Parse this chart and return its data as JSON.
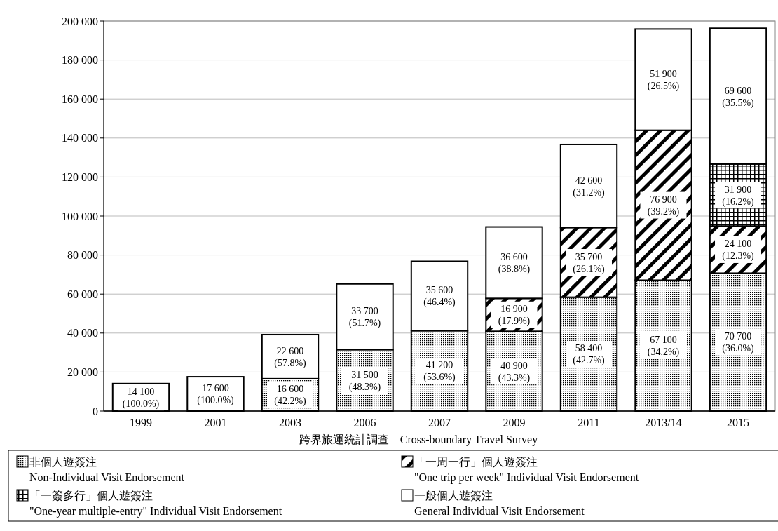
{
  "chart_data": {
    "type": "bar",
    "stacked": true,
    "categories": [
      "1999",
      "2001",
      "2003",
      "2006",
      "2007",
      "2009",
      "2011",
      "2013/14",
      "2015"
    ],
    "xlabel": "跨界旅運統計調查　Cross-boundary Travel Survey",
    "ylim": [
      0,
      200000
    ],
    "yticks": [
      {
        "value": 0,
        "label": "0"
      },
      {
        "value": 20000,
        "label": "20 000"
      },
      {
        "value": 40000,
        "label": "40 000"
      },
      {
        "value": 60000,
        "label": "60 000"
      },
      {
        "value": 80000,
        "label": "80 000"
      },
      {
        "value": 100000,
        "label": "100 000"
      },
      {
        "value": 120000,
        "label": "120 000"
      },
      {
        "value": 140000,
        "label": "140 000"
      },
      {
        "value": 160000,
        "label": "160 000"
      },
      {
        "value": 180000,
        "label": "180 000"
      },
      {
        "value": 200000,
        "label": "200 000"
      }
    ],
    "grid": "y",
    "legend": "bottom",
    "series": [
      {
        "name": "非個人遊簽注\nNon-Individual Visit Endorsement",
        "color": "#000000",
        "values": [
          null,
          null,
          16600,
          31500,
          41200,
          40900,
          58400,
          67100,
          70700
        ],
        "value_labels": [
          null,
          null,
          "16 600\n(42.2%)",
          "31 500\n(48.3%)",
          "41 200\n(53.6%)",
          "40 900\n(43.3%)",
          "58 400\n(42.7%)",
          "67 100\n(34.2%)",
          "70 700\n(36.0%)"
        ]
      },
      {
        "name": "「一周一行」個人遊簽注\n\"One trip per week\" Individual Visit Endorsement",
        "color": "#000000",
        "values": [
          null,
          null,
          null,
          null,
          null,
          16900,
          35700,
          76900,
          24100
        ],
        "value_labels": [
          null,
          null,
          null,
          null,
          null,
          "16 900\n(17.9%)",
          "35 700\n(26.1%)",
          "76 900\n(39.2%)",
          "24 100\n(12.3%)"
        ]
      },
      {
        "name": "「一簽多行」個人遊簽注\n\"One-year multiple-entry\" Individual Visit Endorsement",
        "color": "#000000",
        "values": [
          null,
          null,
          null,
          null,
          null,
          null,
          null,
          null,
          31900
        ],
        "value_labels": [
          null,
          null,
          null,
          null,
          null,
          null,
          null,
          null,
          "31 900\n(16.2%)"
        ]
      },
      {
        "name": "一般個人遊簽注\nGeneral Individual Visit Endorsement",
        "color": "#ffffff",
        "values": [
          14100,
          17600,
          22600,
          33700,
          35600,
          36600,
          42600,
          51900,
          69600
        ],
        "value_labels": [
          "14 100\n(100.0%)",
          "17 600\n(100.0%)",
          "22 600\n(57.8%)",
          "33 700\n(51.7%)",
          "35 600\n(46.4%)",
          "36 600\n(38.8%)",
          "42 600\n(31.2%)",
          "51 900\n(26.5%)",
          "69 600\n(35.5%)"
        ]
      }
    ]
  }
}
